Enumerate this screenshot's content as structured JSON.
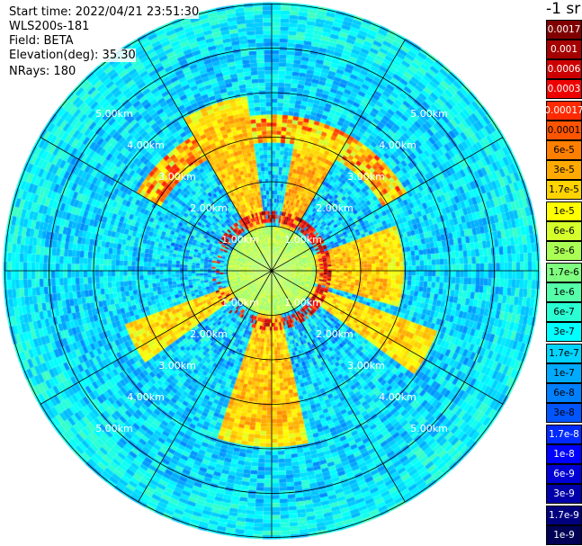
{
  "info": {
    "start_time": "Start time: 2022/04/21 23:51:30",
    "device": "WLS200s-181",
    "field": "Field: BETA",
    "elevation": "Elevation(deg): 35.30",
    "nrays": "NRays: 180"
  },
  "colorbar": {
    "title": "-1 sr",
    "items": [
      {
        "label": "0.0017",
        "color": "#800000",
        "text": "#ffffff"
      },
      {
        "label": "0.001",
        "color": "#a50000",
        "text": "#ffffff"
      },
      {
        "label": "0.0006",
        "color": "#cc0000",
        "text": "#ffffff"
      },
      {
        "label": "0.0003",
        "color": "#ee0000",
        "text": "#ffffff"
      },
      {
        "label": "0.00017",
        "color": "#ff2a00",
        "text": "#ffffff"
      },
      {
        "label": "0.0001",
        "color": "#ff5500",
        "text": "#000000"
      },
      {
        "label": "6e-5",
        "color": "#ff7f00",
        "text": "#000000"
      },
      {
        "label": "3e-5",
        "color": "#ffaa00",
        "text": "#000000"
      },
      {
        "label": "1.7e-5",
        "color": "#ffd400",
        "text": "#000000"
      },
      {
        "label": "1e-5",
        "color": "#ffff00",
        "text": "#000000"
      },
      {
        "label": "6e-6",
        "color": "#d4ff2a",
        "text": "#000000"
      },
      {
        "label": "3e-6",
        "color": "#aaff55",
        "text": "#000000"
      },
      {
        "label": "1.7e-6",
        "color": "#7fff7f",
        "text": "#000000"
      },
      {
        "label": "1e-6",
        "color": "#55ffaa",
        "text": "#000000"
      },
      {
        "label": "6e-7",
        "color": "#2affd4",
        "text": "#000000"
      },
      {
        "label": "3e-7",
        "color": "#00ffff",
        "text": "#000000"
      },
      {
        "label": "1.7e-7",
        "color": "#00d4ff",
        "text": "#000000"
      },
      {
        "label": "1e-7",
        "color": "#00aaff",
        "text": "#000000"
      },
      {
        "label": "6e-8",
        "color": "#007fff",
        "text": "#000000"
      },
      {
        "label": "3e-8",
        "color": "#0055ff",
        "text": "#000000"
      },
      {
        "label": "1.7e-8",
        "color": "#002aff",
        "text": "#ffffff"
      },
      {
        "label": "1e-8",
        "color": "#0000ff",
        "text": "#ffffff"
      },
      {
        "label": "6e-9",
        "color": "#0000d4",
        "text": "#ffffff"
      },
      {
        "label": "3e-9",
        "color": "#0000aa",
        "text": "#ffffff"
      },
      {
        "label": "1.7e-9",
        "color": "#00007f",
        "text": "#ffffff"
      },
      {
        "label": "1e-9",
        "color": "#000055",
        "text": "#ffffff"
      }
    ]
  },
  "chart_data": {
    "type": "heatmap",
    "projection": "polar",
    "field": "BETA",
    "nrays": 180,
    "rmax_km": 6.0,
    "range_rings_km": [
      1,
      2,
      3,
      4,
      5,
      6
    ],
    "ring_labels": [
      "1.00km",
      "2.00km",
      "3.00km",
      "4.00km",
      "5.00km"
    ],
    "spokes_every_deg": 30,
    "sectors": [
      {
        "az": [
          70,
          105
        ],
        "high_to_km": 3.0,
        "level": 0.7
      },
      {
        "az": [
          110,
          125
        ],
        "high_to_km": 4.0,
        "level": 0.68
      },
      {
        "az": [
          168,
          198
        ],
        "high_to_km": 4.0,
        "level": 0.7
      },
      {
        "az": [
          235,
          250
        ],
        "high_to_km": 3.5,
        "level": 0.68
      },
      {
        "az": [
          330,
          352
        ],
        "high_to_km": 4.0,
        "level": 0.7
      },
      {
        "az": [
          10,
          30
        ],
        "high_to_km": 3.2,
        "level": 0.72
      }
    ],
    "high_ring_km": [
      1.05,
      1.35
    ],
    "near_field_km": 1.0
  }
}
